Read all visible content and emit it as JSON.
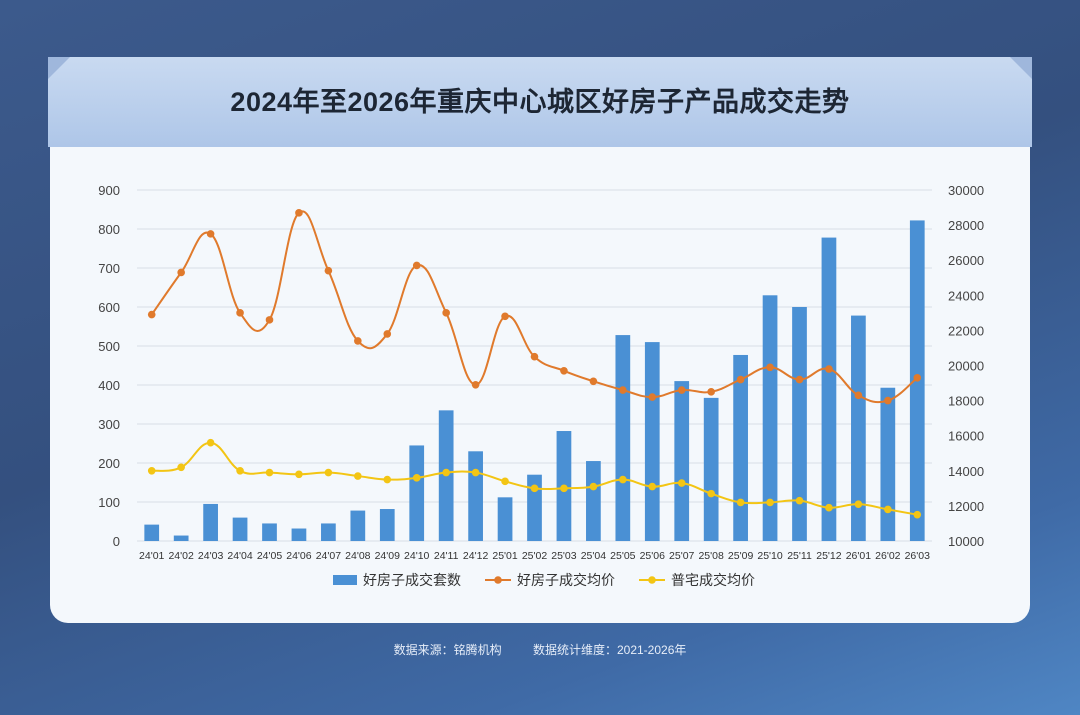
{
  "chart_data": {
    "type": "bar+line",
    "title": "2024年至2026年重庆中心城区好房子产品成交走势",
    "categories": [
      "24'01",
      "24'02",
      "24'03",
      "24'04",
      "24'05",
      "24'06",
      "24'07",
      "24'08",
      "24'09",
      "24'10",
      "24'11",
      "24'12",
      "25'01",
      "25'02",
      "25'03",
      "25'04",
      "25'05",
      "25'06",
      "25'07",
      "25'08",
      "25'09",
      "25'10",
      "25'11",
      "25'12",
      "26'01",
      "26'02",
      "26'03"
    ],
    "y_left": {
      "min": 0,
      "max": 900,
      "ticks": [
        0,
        100,
        200,
        300,
        400,
        500,
        600,
        700,
        800,
        900
      ]
    },
    "y_right": {
      "min": 10000,
      "max": 30000,
      "ticks": [
        10000,
        12000,
        14000,
        16000,
        18000,
        20000,
        22000,
        24000,
        26000,
        28000,
        30000
      ]
    },
    "series": [
      {
        "name": "好房子成交套数",
        "type": "bar",
        "axis": "left",
        "color": "#4a90d4",
        "values": [
          42,
          14,
          95,
          60,
          45,
          32,
          45,
          78,
          82,
          245,
          335,
          230,
          112,
          170,
          282,
          205,
          528,
          510,
          410,
          367,
          477,
          630,
          600,
          778,
          578,
          393,
          822
        ]
      },
      {
        "name": "好房子成交均价",
        "type": "line",
        "axis": "right",
        "color": "#e07a2c",
        "values": [
          22900,
          25300,
          27500,
          23000,
          22600,
          28700,
          25400,
          21400,
          21800,
          25700,
          23000,
          18900,
          22800,
          20500,
          19700,
          19100,
          18600,
          18200,
          18600,
          18500,
          19200,
          19900,
          19200,
          19800,
          18300,
          18000,
          19300
        ]
      },
      {
        "name": "普宅成交均价",
        "type": "line",
        "axis": "right",
        "color": "#f3c514",
        "values": [
          14000,
          14200,
          15600,
          14000,
          13900,
          13800,
          13900,
          13700,
          13500,
          13600,
          13900,
          13900,
          13400,
          13000,
          13000,
          13100,
          13500,
          13100,
          13300,
          12700,
          12200,
          12200,
          12300,
          11900,
          12100,
          11800,
          11500
        ]
      }
    ],
    "grid": true,
    "legend": "bottom"
  },
  "footer": {
    "source": "数据来源：铭腾机构",
    "period": "数据统计维度：2021-2026年"
  }
}
